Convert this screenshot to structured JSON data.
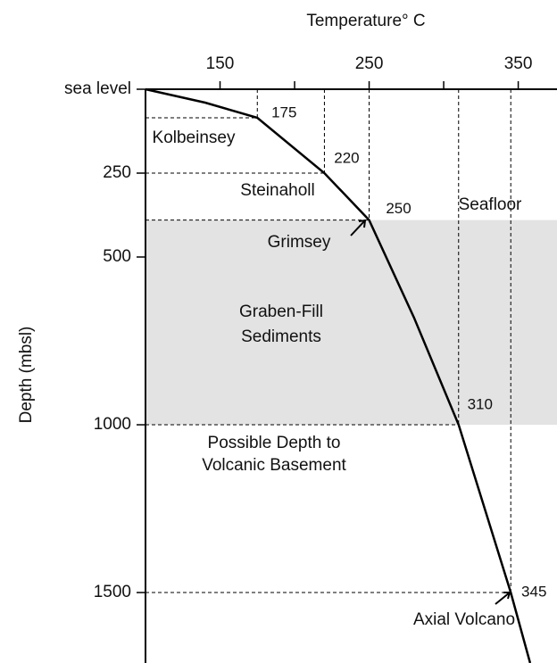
{
  "chart_data": {
    "type": "line",
    "x_label": "Temperature° C",
    "y_label": "Depth (mbsl)",
    "xlim": [
      100,
      376
    ],
    "xticks": [
      150,
      250,
      350
    ],
    "xminor_ticks": [
      200,
      300
    ],
    "ylim": [
      0,
      1710
    ],
    "yticks": [
      {
        "value": 0,
        "label": "sea level"
      },
      250,
      500,
      1000,
      1500
    ],
    "color": "#000000",
    "x": [
      100,
      140,
      175,
      220,
      250,
      280,
      310,
      345,
      358
    ],
    "y": [
      0,
      40,
      85,
      250,
      390,
      680,
      1000,
      1500,
      1710
    ],
    "shaded_depth": [
      390,
      1000
    ],
    "annotations": [
      "Kolbeinsey",
      "Steinaholl",
      "Grimsey",
      "Graben-Fill",
      "Sediments",
      "Seafloor",
      "Possible Depth to",
      "Volcanic Basement",
      "Axial Volcano"
    ]
  }
}
